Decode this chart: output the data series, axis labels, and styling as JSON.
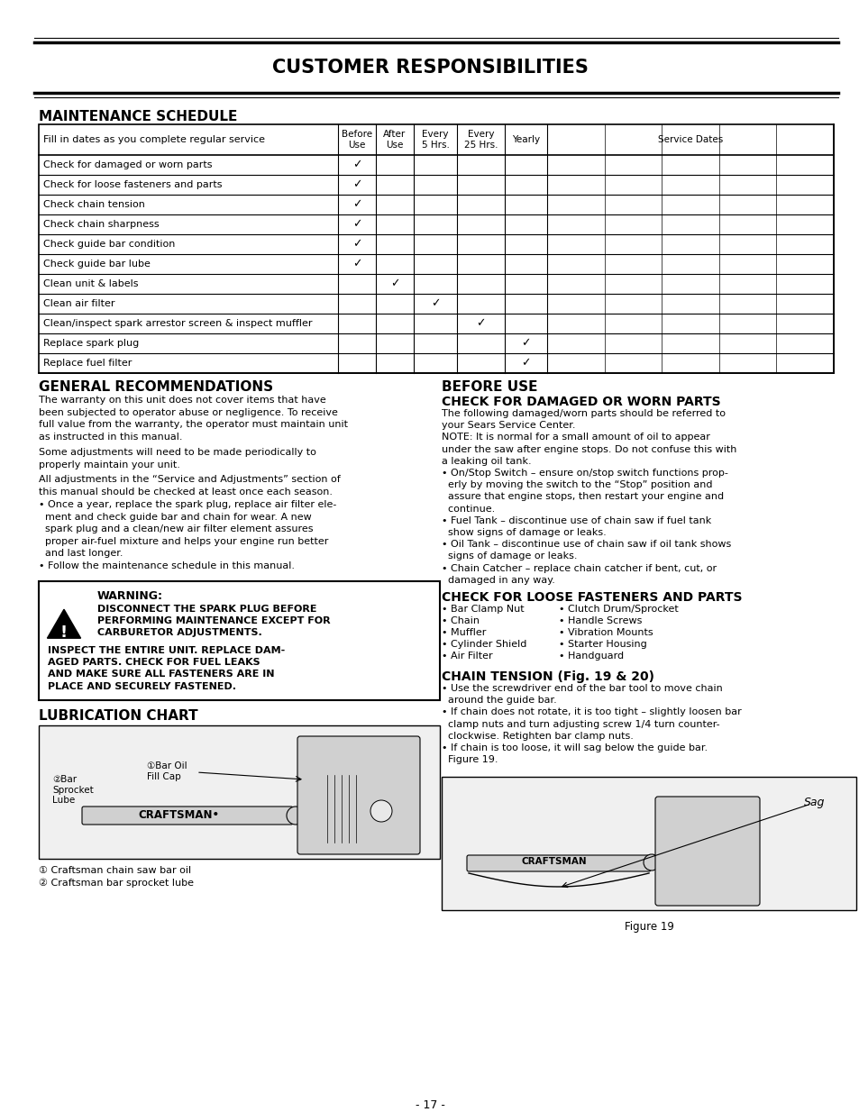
{
  "title": "CUSTOMER RESPONSIBILITIES",
  "bg_color": "#ffffff",
  "page_number": "- 17 -",
  "figure_caption": "Figure 19",
  "maintenance_schedule_title": "MAINTENANCE SCHEDULE",
  "table_rows": [
    {
      "label": "Check for damaged or worn parts",
      "before": true,
      "after": false,
      "every5": false,
      "every25": false,
      "yearly": false
    },
    {
      "label": "Check for loose fasteners and parts",
      "before": true,
      "after": false,
      "every5": false,
      "every25": false,
      "yearly": false
    },
    {
      "label": "Check chain tension",
      "before": true,
      "after": false,
      "every5": false,
      "every25": false,
      "yearly": false
    },
    {
      "label": "Check chain sharpness",
      "before": true,
      "after": false,
      "every5": false,
      "every25": false,
      "yearly": false
    },
    {
      "label": "Check guide bar condition",
      "before": true,
      "after": false,
      "every5": false,
      "every25": false,
      "yearly": false
    },
    {
      "label": "Check guide bar lube",
      "before": true,
      "after": false,
      "every5": false,
      "every25": false,
      "yearly": false
    },
    {
      "label": "Clean unit & labels",
      "before": false,
      "after": true,
      "every5": false,
      "every25": false,
      "yearly": false
    },
    {
      "label": "Clean air filter",
      "before": false,
      "after": false,
      "every5": true,
      "every25": false,
      "yearly": false
    },
    {
      "label": "Clean/inspect spark arrestor screen & inspect muffler",
      "before": false,
      "after": false,
      "every5": false,
      "every25": true,
      "yearly": false
    },
    {
      "label": "Replace spark plug",
      "before": false,
      "after": false,
      "every5": false,
      "every25": false,
      "yearly": true
    },
    {
      "label": "Replace fuel filter",
      "before": false,
      "after": false,
      "every5": false,
      "every25": false,
      "yearly": true
    }
  ],
  "gen_rec_title": "GENERAL RECOMMENDATIONS",
  "gen_rec_para1": "The warranty on this unit does not cover items that have\nbeen subjected to operator abuse or negligence. To receive\nfull value from the warranty, the operator must maintain unit\nas instructed in this manual.",
  "gen_rec_para2": "Some adjustments will need to be made periodically to\nproperly maintain your unit.",
  "gen_rec_para3": "All adjustments in the “Service and Adjustments” section of\nthis manual should be checked at least once each season.",
  "gen_rec_bullet1": "• Once a year, replace the spark plug, replace air filter ele-\n  ment and check guide bar and chain for wear. A new\n  spark plug and a clean/new air filter element assures\n  proper air-fuel mixture and helps your engine run better\n  and last longer.",
  "gen_rec_bullet2": "• Follow the maintenance schedule in this manual.",
  "warning_title": "WARNING:",
  "warning_line1": "DISCONNECT THE SPARK PLUG BEFORE",
  "warning_line2": "PERFORMING MAINTENANCE EXCEPT FOR",
  "warning_line3": "CARBURETOR ADJUSTMENTS.",
  "warning_line4": "INSPECT THE ENTIRE UNIT. REPLACE DAM-",
  "warning_line5": "AGED PARTS. CHECK FOR FUEL LEAKS",
  "warning_line6": "AND MAKE SURE ALL FASTENERS ARE IN",
  "warning_line7": "PLACE AND SECURELY FASTENED.",
  "lub_title": "LUBRICATION CHART",
  "lub_label1": "②Bar\nSprocket\nLube",
  "lub_label2": "①Bar Oil\nFill Cap",
  "lub_footnote1": "① Craftsman chain saw bar oil",
  "lub_footnote2": "② Craftsman bar sprocket lube",
  "before_use_title": "BEFORE USE",
  "check_dam_title": "CHECK FOR DAMAGED OR WORN PARTS",
  "check_dam_text": "The following damaged/worn parts should be referred to\nyour Sears Service Center.\nNOTE: It is normal for a small amount of oil to appear\nunder the saw after engine stops. Do not confuse this with\na leaking oil tank.\n• On/Stop Switch – ensure on/stop switch functions prop-\n  erly by moving the switch to the “Stop” position and\n  assure that engine stops, then restart your engine and\n  continue.\n• Fuel Tank – discontinue use of chain saw if fuel tank\n  show signs of damage or leaks.\n• Oil Tank – discontinue use of chain saw if oil tank shows\n  signs of damage or leaks.\n• Chain Catcher – replace chain catcher if bent, cut, or\n  damaged in any way.",
  "check_loose_title": "CHECK FOR LOOSE FASTENERS AND PARTS",
  "loose_col1": [
    "• Bar Clamp Nut",
    "• Chain",
    "• Muffler",
    "• Cylinder Shield",
    "• Air Filter"
  ],
  "loose_col2": [
    "• Clutch Drum/Sprocket",
    "• Handle Screws",
    "• Vibration Mounts",
    "• Starter Housing",
    "• Handguard"
  ],
  "chain_tension_title": "CHAIN TENSION (Fig. 19 & 20)",
  "chain_tension_text": "• Use the screwdriver end of the bar tool to move chain\n  around the guide bar.\n• If chain does not rotate, it is too tight – slightly loosen bar\n  clamp nuts and turn adjusting screw 1/4 turn counter-\n  clockwise. Retighten bar clamp nuts.\n• If chain is too loose, it will sag below the guide bar.\n  Figure 19.",
  "sag_label": "Sag"
}
